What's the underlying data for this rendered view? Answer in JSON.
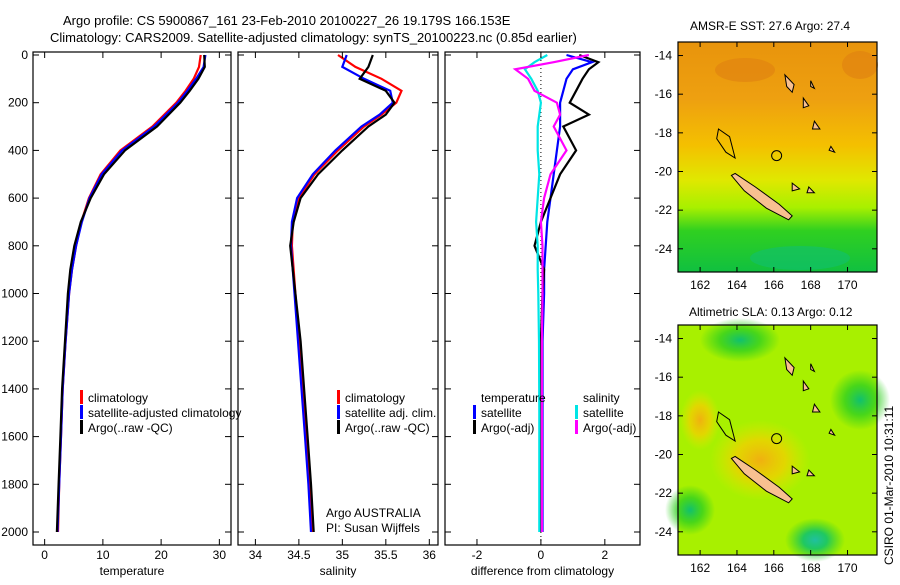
{
  "header": {
    "line1": "Argo profile: CS 5900867_161 23-Feb-2010 20100227_26 19.179S 166.153E",
    "line2": "Climatology: CARS2009. Satellite-adjusted climatology: synTS_20100223.nc (0.85d earlier)"
  },
  "credit": {
    "program": "Argo AUSTRALIA",
    "pi": "PI: Susan Wijffels",
    "stamp": "CSIRO 01-Mar-2010 10:31:11"
  },
  "colors": {
    "climatology": "#ff0000",
    "satellite": "#0000ff",
    "argo": "#000000",
    "sal_satellite": "#00e5e5",
    "sal_argo": "#ff00ff"
  },
  "chart_data": [
    {
      "type": "line",
      "title": "",
      "xlabel": "temperature",
      "ylabel": "",
      "xlim": [
        -2,
        32
      ],
      "ylim": [
        2050,
        0
      ],
      "xticks": [
        0,
        10,
        20,
        30
      ],
      "yticks": [
        0,
        200,
        400,
        600,
        800,
        1000,
        1200,
        1400,
        1600,
        1800,
        2000
      ],
      "legend": {
        "placement": "lower-right",
        "entries": [
          "climatology",
          "satellite-adjusted climatology",
          "Argo(..raw -QC)"
        ]
      },
      "depth": [
        0,
        50,
        100,
        150,
        200,
        300,
        400,
        500,
        600,
        700,
        800,
        900,
        1000,
        1200,
        1400,
        1600,
        1800,
        2000
      ],
      "series": [
        {
          "name": "climatology",
          "color": "#ff0000",
          "values": [
            26.8,
            26.5,
            25.6,
            24.2,
            22.6,
            18.5,
            13.0,
            9.6,
            7.6,
            6.3,
            5.4,
            4.7,
            4.2,
            3.6,
            3.1,
            2.8,
            2.5,
            2.3
          ]
        },
        {
          "name": "satellite-adjusted climatology",
          "color": "#0000ff",
          "values": [
            27.6,
            27.3,
            26.0,
            24.5,
            22.9,
            18.8,
            13.3,
            9.8,
            7.7,
            6.4,
            5.4,
            4.7,
            4.2,
            3.6,
            3.1,
            2.8,
            2.5,
            2.2
          ]
        },
        {
          "name": "Argo(..raw -QC)",
          "color": "#000000",
          "values": [
            27.4,
            27.5,
            26.4,
            24.9,
            23.3,
            19.3,
            13.8,
            10.2,
            7.9,
            6.2,
            5.1,
            4.4,
            4.0,
            3.5,
            3.0,
            2.7,
            2.4,
            2.1
          ]
        }
      ]
    },
    {
      "type": "line",
      "title": "",
      "xlabel": "salinity",
      "xlim": [
        33.8,
        36.1
      ],
      "ylim": [
        2050,
        0
      ],
      "xticks": [
        34,
        34.5,
        35,
        35.5,
        36
      ],
      "legend": {
        "placement": "lower-right",
        "entries": [
          "climatology",
          "satellite adj. clim.",
          "Argo(..raw -QC)"
        ]
      },
      "depth": [
        0,
        50,
        100,
        150,
        200,
        250,
        300,
        400,
        500,
        600,
        700,
        800,
        1000,
        1200,
        1400,
        1600,
        1800,
        2000
      ],
      "series": [
        {
          "name": "climatology",
          "color": "#ff0000",
          "values": [
            34.95,
            35.15,
            35.45,
            35.68,
            35.62,
            35.45,
            35.25,
            34.95,
            34.68,
            34.5,
            34.43,
            34.42,
            34.46,
            34.5,
            34.54,
            34.58,
            34.62,
            34.66
          ]
        },
        {
          "name": "satellite adj. clim.",
          "color": "#0000ff",
          "values": [
            35.05,
            35.0,
            35.25,
            35.55,
            35.58,
            35.43,
            35.22,
            34.92,
            34.66,
            34.48,
            34.42,
            34.41,
            34.45,
            34.49,
            34.53,
            34.57,
            34.61,
            34.64
          ]
        },
        {
          "name": "Argo(..raw -QC)",
          "color": "#000000",
          "values": [
            35.35,
            35.3,
            35.2,
            35.5,
            35.6,
            35.5,
            35.3,
            35.0,
            34.72,
            34.52,
            34.44,
            34.4,
            34.46,
            34.52,
            34.56,
            34.6,
            34.64,
            34.67
          ]
        }
      ]
    },
    {
      "type": "line",
      "title": "",
      "xlabel": "difference from climatology",
      "xlim": [
        -3,
        3.1
      ],
      "ylim": [
        2050,
        0
      ],
      "xticks": [
        -2,
        0,
        2
      ],
      "legend": {
        "placement": "lower-center",
        "headers": [
          "temperature",
          "salinity"
        ],
        "entries": [
          "satellite",
          "Argo(-adj)",
          "satellite",
          "Argo(-adj)"
        ]
      },
      "depth": [
        0,
        30,
        60,
        100,
        150,
        200,
        250,
        300,
        400,
        500,
        600,
        700,
        800,
        900,
        1000,
        1200,
        1500,
        2000
      ],
      "series": [
        {
          "name": "temperature satellite",
          "color": "#0000ff",
          "values": [
            0.8,
            1.6,
            1.0,
            0.8,
            0.7,
            0.6,
            0.6,
            0.6,
            0.5,
            0.4,
            0.3,
            0.2,
            0.15,
            0.1,
            0.1,
            0.05,
            0.05,
            0.05
          ]
        },
        {
          "name": "temperature Argo(-adj)",
          "color": "#000000",
          "values": [
            1.2,
            1.8,
            1.5,
            1.3,
            1.1,
            0.9,
            1.5,
            0.7,
            1.1,
            0.6,
            0.3,
            0.0,
            -0.2,
            0.1,
            0.05,
            0.0,
            0.0,
            0.0
          ]
        },
        {
          "name": "salinity satellite",
          "color": "#00e5e5",
          "values": [
            0.2,
            -0.2,
            -0.5,
            -0.3,
            -0.1,
            0.0,
            -0.05,
            -0.1,
            -0.1,
            -0.05,
            -0.1,
            -0.15,
            -0.1,
            -0.1,
            -0.08,
            -0.06,
            -0.05,
            -0.05
          ]
        },
        {
          "name": "salinity Argo(-adj)",
          "color": "#ff00ff",
          "values": [
            1.5,
            0.4,
            -0.8,
            -0.4,
            -0.2,
            0.5,
            0.6,
            0.4,
            0.8,
            0.3,
            0.1,
            0.0,
            0.05,
            0.05,
            0.05,
            0.03,
            0.03,
            0.03
          ]
        }
      ]
    },
    {
      "type": "heatmap",
      "title": "AMSR-E SST: 27.6 Argo: 27.4",
      "xlim": [
        160.8,
        171.6
      ],
      "ylim": [
        13.3,
        25.2
      ],
      "xticks": [
        162,
        164,
        166,
        168,
        170
      ],
      "yticks": [
        14,
        16,
        18,
        20,
        22,
        24
      ],
      "profile_location": {
        "lon": 166.153,
        "lat": 19.179
      }
    },
    {
      "type": "heatmap",
      "title": "Altimetric SLA: 0.13 Argo: 0.12",
      "xlim": [
        160.8,
        171.6
      ],
      "ylim": [
        13.3,
        25.2
      ],
      "xticks": [
        162,
        164,
        166,
        168,
        170
      ],
      "yticks": [
        14,
        16,
        18,
        20,
        22,
        24
      ],
      "profile_location": {
        "lon": 166.153,
        "lat": 19.179
      }
    }
  ]
}
